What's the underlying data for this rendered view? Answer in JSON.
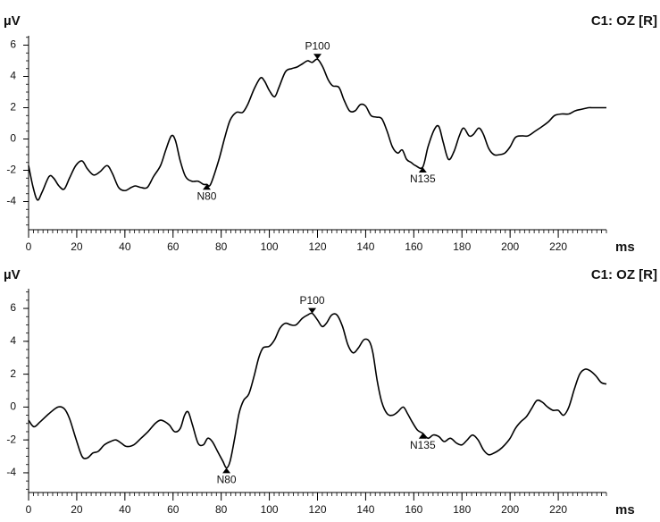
{
  "chart_data": [
    {
      "type": "line",
      "title": "C1: OZ [R]",
      "ylabel": "µV",
      "xlabel": "ms",
      "color": "#000000",
      "xlim": [
        0,
        240
      ],
      "xticks": [
        0,
        20,
        40,
        60,
        80,
        100,
        120,
        140,
        160,
        180,
        200,
        220
      ],
      "ylim": [
        -5.8,
        6.6
      ],
      "yticks": [
        -4,
        -2,
        0,
        2,
        4,
        6
      ],
      "minor_ticks": {
        "x": 2,
        "y": 0.5
      },
      "x": [
        0,
        1.9,
        3.7,
        5.6,
        8.5,
        10.4,
        12.6,
        14.8,
        17,
        19.6,
        22.2,
        24.4,
        27,
        29.6,
        32.6,
        34.8,
        37.4,
        40,
        42.6,
        44.4,
        46.7,
        49.3,
        51.9,
        54.8,
        57,
        59.3,
        61,
        63,
        65.2,
        67.8,
        70.4,
        72.6,
        74,
        75.6,
        78.9,
        81.5,
        83.7,
        86.3,
        88.9,
        91,
        93.7,
        96.3,
        98,
        100,
        102.2,
        104,
        106.7,
        109.3,
        111.5,
        113.7,
        115.9,
        117.8,
        120,
        122.2,
        124.4,
        126.3,
        128.9,
        131,
        133.3,
        135.6,
        137.8,
        140,
        142.2,
        144.4,
        146.7,
        148.9,
        151.1,
        153.3,
        155.2,
        157,
        158.9,
        160.7,
        163.7,
        165.9,
        168.5,
        170.4,
        172.2,
        174.4,
        176.7,
        178.9,
        180.7,
        183,
        184.8,
        187,
        188.9,
        191.1,
        193.3,
        195.6,
        197.8,
        200,
        202.2,
        204.8,
        207.4,
        210.4,
        213.3,
        215.9,
        218.5,
        221.5,
        224.4,
        227,
        229.6,
        232.6,
        234.4,
        240
      ],
      "values": [
        -1.7,
        -3.1,
        -3.9,
        -3.4,
        -2.4,
        -2.5,
        -3,
        -3.2,
        -2.5,
        -1.7,
        -1.4,
        -1.9,
        -2.3,
        -2.1,
        -1.7,
        -2.2,
        -3.1,
        -3.3,
        -3.1,
        -3,
        -3.1,
        -3.1,
        -2.4,
        -1.7,
        -0.7,
        0.2,
        -0.1,
        -1.4,
        -2.4,
        -2.7,
        -2.7,
        -2.9,
        -2.9,
        -2.9,
        -1.4,
        0.1,
        1.2,
        1.7,
        1.7,
        2.2,
        3.2,
        3.9,
        3.7,
        3.1,
        2.7,
        3.3,
        4.3,
        4.5,
        4.6,
        4.8,
        5,
        4.9,
        5.1,
        4.6,
        3.8,
        3.4,
        3.3,
        2.5,
        1.8,
        1.8,
        2.2,
        2.1,
        1.5,
        1.4,
        1.3,
        0.5,
        -0.5,
        -0.9,
        -0.7,
        -1.3,
        -1.5,
        -1.7,
        -1.8,
        -0.5,
        0.6,
        0.8,
        -0.2,
        -1.3,
        -0.8,
        0.2,
        0.7,
        0.2,
        0.3,
        0.7,
        0.3,
        -0.6,
        -1,
        -1,
        -0.9,
        -0.5,
        0.1,
        0.2,
        0.2,
        0.5,
        0.8,
        1.1,
        1.5,
        1.6,
        1.6,
        1.8,
        1.9,
        2,
        2,
        2
      ],
      "annotations": [
        {
          "text": "N80",
          "x": 74,
          "y": -2.9,
          "position": "below"
        },
        {
          "text": "P100",
          "x": 120,
          "y": 5.1,
          "position": "above"
        },
        {
          "text": "N135",
          "x": 163.7,
          "y": -1.8,
          "position": "below"
        }
      ]
    },
    {
      "type": "line",
      "title": "C1: OZ [R]",
      "ylabel": "µV",
      "xlabel": "ms",
      "color": "#000000",
      "xlim": [
        0,
        240
      ],
      "xticks": [
        0,
        20,
        40,
        60,
        80,
        100,
        120,
        140,
        160,
        180,
        200,
        220
      ],
      "ylim": [
        -5.2,
        7.2
      ],
      "yticks": [
        -4,
        -2,
        0,
        2,
        4,
        6
      ],
      "minor_ticks": {
        "x": 2,
        "y": 0.5
      },
      "x": [
        0,
        2.2,
        4.8,
        8.5,
        12.2,
        14.8,
        17,
        19.6,
        22.2,
        24.4,
        26.7,
        28.9,
        31.5,
        34,
        36.3,
        38.5,
        40.7,
        43.7,
        46.7,
        49.6,
        52.6,
        54.8,
        56.7,
        58.5,
        60.7,
        63,
        64.8,
        66.3,
        68.1,
        70.4,
        72.6,
        74.4,
        76.3,
        78.5,
        80.7,
        82.2,
        83.7,
        85.6,
        87.4,
        89.3,
        91.5,
        93.7,
        95.6,
        97.4,
        100,
        102.2,
        104.4,
        106.7,
        108.9,
        111.1,
        113.7,
        115.9,
        117.8,
        120,
        121.9,
        123.7,
        125.9,
        128.1,
        130.4,
        132.6,
        134.8,
        137,
        139.3,
        141.5,
        143,
        144.8,
        146.7,
        148.9,
        151.1,
        153.3,
        155.6,
        157.4,
        159.3,
        161.5,
        163.7,
        165.9,
        168.1,
        170.4,
        172.6,
        175.2,
        177.8,
        180,
        182.2,
        184.4,
        186.7,
        188.9,
        191.1,
        193.3,
        195.6,
        197.8,
        200,
        202.2,
        204.4,
        206.7,
        208.9,
        211.1,
        213.3,
        215.6,
        217.8,
        220,
        222.2,
        224.4,
        226.7,
        228.9,
        231.1,
        233.3,
        235.6,
        237.8,
        240
      ],
      "values": [
        -0.8,
        -1.2,
        -0.9,
        -0.4,
        0,
        -0.1,
        -0.7,
        -1.9,
        -3,
        -3.1,
        -2.8,
        -2.7,
        -2.3,
        -2.1,
        -2,
        -2.2,
        -2.4,
        -2.3,
        -1.9,
        -1.5,
        -1,
        -0.8,
        -0.9,
        -1.1,
        -1.5,
        -1.3,
        -0.5,
        -0.3,
        -1.1,
        -2.2,
        -2.3,
        -1.9,
        -2.1,
        -2.7,
        -3.3,
        -3.7,
        -3.3,
        -1.9,
        -0.4,
        0.4,
        0.8,
        1.9,
        3,
        3.6,
        3.7,
        4.1,
        4.8,
        5.1,
        5,
        5,
        5.4,
        5.6,
        5.7,
        5.3,
        4.9,
        5.1,
        5.6,
        5.6,
        4.9,
        3.8,
        3.3,
        3.6,
        4.1,
        4,
        3.3,
        1.6,
        0.3,
        -0.4,
        -0.5,
        -0.3,
        0,
        -0.4,
        -0.9,
        -1.4,
        -1.6,
        -1.9,
        -1.7,
        -1.8,
        -2.1,
        -1.9,
        -2.2,
        -2.3,
        -2,
        -1.7,
        -2,
        -2.6,
        -2.9,
        -2.8,
        -2.6,
        -2.3,
        -1.9,
        -1.3,
        -0.9,
        -0.6,
        -0.1,
        0.4,
        0.3,
        0,
        -0.2,
        -0.2,
        -0.5,
        0,
        1.1,
        2,
        2.3,
        2.2,
        1.9,
        1.5,
        1.4
      ],
      "annotations": [
        {
          "text": "N80",
          "x": 82.2,
          "y": -3.7,
          "position": "below"
        },
        {
          "text": "P100",
          "x": 117.8,
          "y": 5.7,
          "position": "above"
        },
        {
          "text": "N135",
          "x": 163.7,
          "y": -1.6,
          "position": "below"
        }
      ]
    }
  ]
}
